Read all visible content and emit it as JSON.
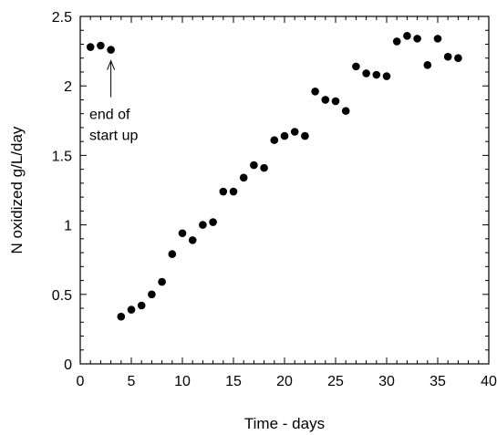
{
  "chart_data": {
    "type": "scatter",
    "title": "",
    "xlabel": "Time - days",
    "ylabel": "N oxidized g/L/day",
    "xlim": [
      0,
      40
    ],
    "ylim": [
      0,
      2.5
    ],
    "x_ticks": [
      "0",
      "5",
      "10",
      "15",
      "20",
      "25",
      "30",
      "35",
      "40"
    ],
    "y_ticks": [
      "0",
      "0.5",
      "1",
      "1.5",
      "2",
      "2.5"
    ],
    "grid": false,
    "legend": "none",
    "marker_color": "#000000",
    "series": [
      {
        "x": [
          1,
          2,
          3,
          4,
          5,
          6,
          7,
          8,
          9,
          10,
          11,
          12,
          13,
          14,
          15,
          16,
          17,
          18,
          19,
          20,
          21,
          22,
          23,
          24,
          25,
          26,
          27,
          28,
          29,
          30,
          31,
          32,
          33,
          34,
          35,
          36,
          37
        ],
        "y": [
          2.28,
          2.29,
          2.26,
          0.34,
          0.39,
          0.42,
          0.5,
          0.59,
          0.79,
          0.94,
          0.89,
          1.0,
          1.02,
          1.24,
          1.24,
          1.34,
          1.43,
          1.41,
          1.61,
          1.64,
          1.67,
          1.64,
          1.96,
          1.9,
          1.89,
          1.82,
          2.14,
          2.09,
          2.08,
          2.07,
          2.32,
          2.36,
          2.34,
          2.15,
          2.34,
          2.21,
          2.2
        ]
      }
    ],
    "annotations": [
      {
        "lines": [
          "end of",
          "start up"
        ],
        "x": 3,
        "y": 2.26
      }
    ]
  }
}
